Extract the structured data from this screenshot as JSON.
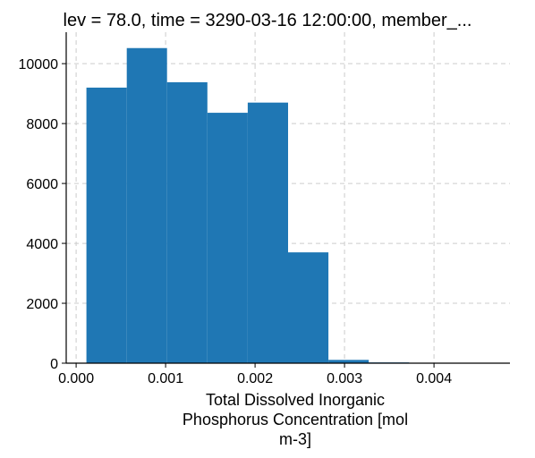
{
  "chart_data": {
    "type": "bar",
    "title": "lev = 78.0, time = 3290-03-16 12:00:00, member_...",
    "xlabel_lines": [
      "Total Dissolved Inorganic",
      "Phosphorus Concentration [mol",
      "m-3]"
    ],
    "ylabel": "",
    "bins": [
      {
        "x0": 0.000115,
        "x1": 0.000566,
        "value": 9200
      },
      {
        "x0": 0.000566,
        "x1": 0.001016,
        "value": 10520
      },
      {
        "x0": 0.001016,
        "x1": 0.001467,
        "value": 9380
      },
      {
        "x0": 0.001467,
        "x1": 0.001918,
        "value": 8360
      },
      {
        "x0": 0.001918,
        "x1": 0.002369,
        "value": 8700
      },
      {
        "x0": 0.002369,
        "x1": 0.00282,
        "value": 3700
      },
      {
        "x0": 0.00282,
        "x1": 0.003271,
        "value": 110
      },
      {
        "x0": 0.003271,
        "x1": 0.003722,
        "value": 25
      },
      {
        "x0": 0.003722,
        "x1": 0.004173,
        "value": 15
      },
      {
        "x0": 0.004173,
        "x1": 0.004624,
        "value": 10
      }
    ],
    "xlim": [
      -0.000111,
      0.004849
    ],
    "ylim": [
      0,
      11050
    ],
    "xticks": [
      0.0,
      0.001,
      0.002,
      0.003,
      0.004
    ],
    "xtick_labels": [
      "0.000",
      "0.001",
      "0.002",
      "0.003",
      "0.004"
    ],
    "yticks": [
      0,
      2000,
      4000,
      6000,
      8000,
      10000
    ],
    "ytick_labels": [
      "0",
      "2000",
      "4000",
      "6000",
      "8000",
      "10000"
    ],
    "grid": true,
    "bar_color": "#1f77b4",
    "grid_color": "#cccccc"
  }
}
